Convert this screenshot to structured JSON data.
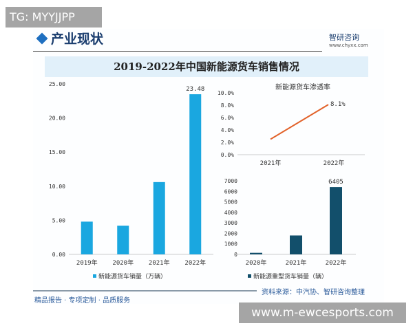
{
  "overlay": {
    "tg": "TG: MYYJJPP",
    "site": "www.m-ewcesports.com"
  },
  "header": {
    "section": "产业现状",
    "brand": "智研咨询",
    "url": "www.chyxx.com"
  },
  "title": "2019-2022年中国新能源货车销售情况",
  "source": "资料来源：中汽协、智研咨询整理",
  "footer": "精品报告 · 专项定制 · 品质服务",
  "colors": {
    "bar_light": "#1aa7e0",
    "bar_dark": "#124f6b",
    "line": "#e2622a"
  },
  "chart_data": [
    {
      "type": "bar",
      "categories": [
        "2019年",
        "2020年",
        "2021年",
        "2022年"
      ],
      "series": [
        {
          "name": "新能源货车销量（万辆）",
          "values": [
            4.8,
            4.2,
            10.6,
            23.48
          ]
        }
      ],
      "data_labels": {
        "2022年": "23.48"
      },
      "ylim": [
        0,
        25
      ],
      "yticks": [
        "0.00",
        "5.00",
        "10.00",
        "15.00",
        "20.00",
        "25.00"
      ],
      "legend": "bottom"
    },
    {
      "type": "line",
      "title": "新能源货车渗透率",
      "categories": [
        "2021年",
        "2022年"
      ],
      "values": [
        2.5,
        8.1
      ],
      "data_labels": {
        "2022年": "8.1%"
      },
      "ylim": [
        0,
        10
      ],
      "yticks": [
        "0.0%",
        "2.0%",
        "4.0%",
        "6.0%",
        "8.0%",
        "10.0%"
      ]
    },
    {
      "type": "bar",
      "categories": [
        "2020年",
        "2021年",
        "2022年"
      ],
      "series": [
        {
          "name": "新能源重型货车销量（辆）",
          "values": [
            150,
            1800,
            6405
          ]
        }
      ],
      "data_labels": {
        "2022年": "6405"
      },
      "ylim": [
        0,
        7000
      ],
      "yticks": [
        "0",
        "1000",
        "2000",
        "3000",
        "4000",
        "5000",
        "6000",
        "7000"
      ],
      "legend": "bottom"
    }
  ]
}
